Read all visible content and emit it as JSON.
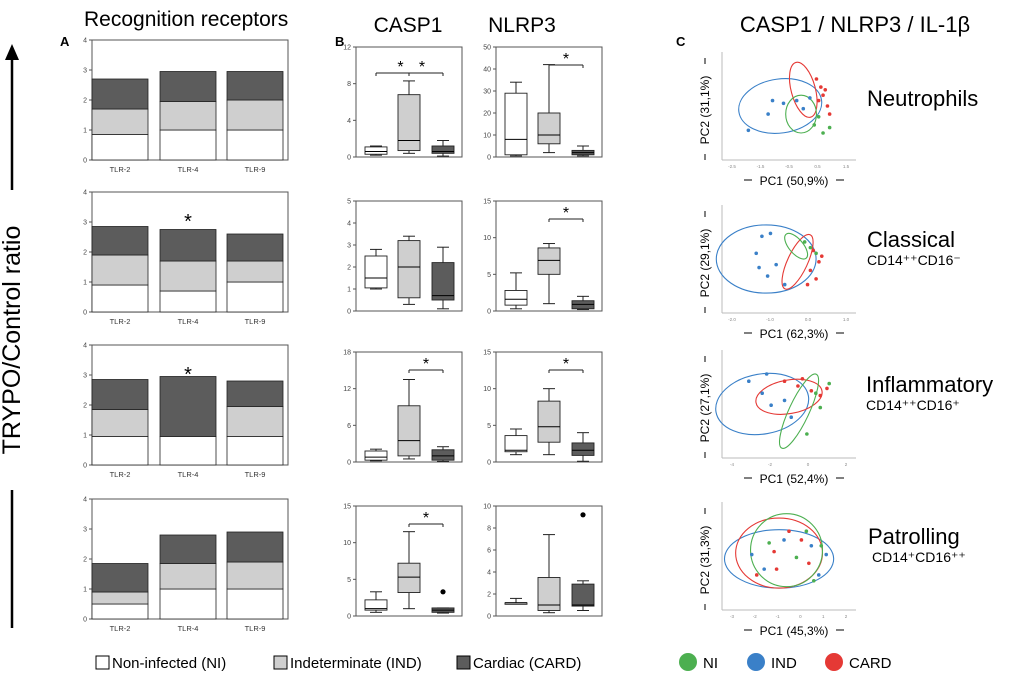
{
  "header": {
    "recognition_title": "Recognition receptors",
    "casp1_title": "CASP1",
    "nlrp3_title": "NLRP3",
    "pca_title": "CASP1 / NLRP3 / IL-1β"
  },
  "panel_labels": {
    "a": "A",
    "b": "B",
    "c": "C"
  },
  "y_axis_label": "TRYPO/Control ratio",
  "legend": {
    "groups": [
      {
        "label": "Non-infected (NI)",
        "color": "#ffffff"
      },
      {
        "label": "Indeterminate (IND)",
        "color": "#cfcfcf"
      },
      {
        "label": "Cardiac (CARD)",
        "color": "#5c5c5c"
      }
    ],
    "dots": [
      {
        "label": "NI",
        "color": "#4caf50"
      },
      {
        "label": "IND",
        "color": "#3a80c8"
      },
      {
        "label": "CARD",
        "color": "#e53935"
      }
    ]
  },
  "chart_data": [
    {
      "type": "bar",
      "panel": "A",
      "title": "Recognition receptors",
      "stacked": true,
      "ylim": [
        0,
        4
      ],
      "yticks": [
        "0",
        "1",
        "2",
        "3",
        "4"
      ],
      "categories": [
        "TLR-2",
        "TLR-4",
        "TLR-9"
      ],
      "rows": [
        {
          "series": [
            {
              "name": "Non-infected (NI)",
              "values": [
                0.85,
                1.0,
                1.0
              ]
            },
            {
              "name": "Indeterminate (IND)",
              "values": [
                0.85,
                0.95,
                1.0
              ]
            },
            {
              "name": "Cardiac (CARD)",
              "values": [
                1.0,
                1.0,
                0.95
              ]
            }
          ],
          "annotation": ""
        },
        {
          "series": [
            {
              "name": "Non-infected (NI)",
              "values": [
                0.9,
                0.7,
                1.0
              ]
            },
            {
              "name": "Indeterminate (IND)",
              "values": [
                1.0,
                1.0,
                0.7
              ]
            },
            {
              "name": "Cardiac (CARD)",
              "values": [
                0.95,
                1.05,
                0.9
              ]
            }
          ],
          "annotation": "*"
        },
        {
          "series": [
            {
              "name": "Non-infected (NI)",
              "values": [
                0.95,
                0.95,
                0.95
              ]
            },
            {
              "name": "Indeterminate (IND)",
              "values": [
                0.9,
                0.0,
                1.0
              ]
            },
            {
              "name": "Cardiac (CARD)",
              "values": [
                1.0,
                2.0,
                0.85
              ]
            }
          ],
          "annotation": "*"
        },
        {
          "series": [
            {
              "name": "Non-infected (NI)",
              "values": [
                0.5,
                1.0,
                1.0
              ]
            },
            {
              "name": "Indeterminate (IND)",
              "values": [
                0.4,
                0.85,
                0.9
              ]
            },
            {
              "name": "Cardiac (CARD)",
              "values": [
                0.95,
                0.95,
                1.0
              ]
            }
          ],
          "annotation": ""
        }
      ]
    },
    {
      "type": "box",
      "panel": "B",
      "groups": [
        "Non-infected (NI)",
        "Indeterminate (IND)",
        "Cardiac (CARD)"
      ],
      "rows": [
        {
          "casp1": {
            "ylim": [
              0,
              12
            ],
            "yticks": [
              "0",
              "4",
              "8",
              "12"
            ],
            "boxes": [
              {
                "min": 0.2,
                "q1": 0.3,
                "median": 0.6,
                "q3": 1.1,
                "max": 1.2
              },
              {
                "min": 0.4,
                "q1": 0.7,
                "median": 1.8,
                "q3": 6.8,
                "max": 8.3
              },
              {
                "min": 0.1,
                "q1": 0.4,
                "median": 0.6,
                "q3": 1.2,
                "max": 1.8
              }
            ],
            "sig": "* *"
          },
          "nlrp3": {
            "ylim": [
              0,
              50
            ],
            "yticks": [
              "0",
              "10",
              "20",
              "30",
              "40",
              "50"
            ],
            "boxes": [
              {
                "min": 0.5,
                "q1": 1,
                "median": 8,
                "q3": 29,
                "max": 34
              },
              {
                "min": 2,
                "q1": 6,
                "median": 10,
                "q3": 20,
                "max": 42
              },
              {
                "min": 0.5,
                "q1": 1,
                "median": 2,
                "q3": 3,
                "max": 5
              }
            ],
            "sig": "*"
          }
        },
        {
          "casp1": {
            "ylim": [
              0,
              5
            ],
            "yticks": [
              "0",
              "1",
              "2",
              "3",
              "4",
              "5"
            ],
            "boxes": [
              {
                "min": 1.0,
                "q1": 1.05,
                "median": 1.5,
                "q3": 2.5,
                "max": 2.8
              },
              {
                "min": 0.3,
                "q1": 0.6,
                "median": 2.0,
                "q3": 3.2,
                "max": 3.4
              },
              {
                "min": 0.1,
                "q1": 0.5,
                "median": 0.7,
                "q3": 2.2,
                "max": 2.9
              }
            ],
            "sig": ""
          },
          "nlrp3": {
            "ylim": [
              0,
              15
            ],
            "yticks": [
              "0",
              "5",
              "10",
              "15"
            ],
            "boxes": [
              {
                "min": 0.3,
                "q1": 0.8,
                "median": 1.6,
                "q3": 2.8,
                "max": 5.2
              },
              {
                "min": 1.0,
                "q1": 5.0,
                "median": 6.9,
                "q3": 8.6,
                "max": 9.2
              },
              {
                "min": 0.2,
                "q1": 0.3,
                "median": 0.9,
                "q3": 1.4,
                "max": 2.0
              }
            ],
            "sig": "*"
          }
        },
        {
          "casp1": {
            "ylim": [
              0,
              18
            ],
            "yticks": [
              "0",
              "6",
              "12",
              "18"
            ],
            "boxes": [
              {
                "min": 0.2,
                "q1": 0.3,
                "median": 0.8,
                "q3": 1.8,
                "max": 2.1
              },
              {
                "min": 0.5,
                "q1": 1.0,
                "median": 3.5,
                "q3": 9.2,
                "max": 13.5
              },
              {
                "min": 0.1,
                "q1": 0.3,
                "median": 1.0,
                "q3": 2.0,
                "max": 2.5
              }
            ],
            "sig": "*"
          },
          "nlrp3": {
            "ylim": [
              0,
              15
            ],
            "yticks": [
              "0",
              "5",
              "10",
              "15"
            ],
            "boxes": [
              {
                "min": 1.0,
                "q1": 1.4,
                "median": 1.6,
                "q3": 3.6,
                "max": 4.5
              },
              {
                "min": 1.0,
                "q1": 2.7,
                "median": 4.8,
                "q3": 8.3,
                "max": 10.0
              },
              {
                "min": 0.1,
                "q1": 0.9,
                "median": 1.6,
                "q3": 2.6,
                "max": 4.0
              }
            ],
            "sig": "*"
          }
        },
        {
          "casp1": {
            "ylim": [
              0,
              15
            ],
            "yticks": [
              "0",
              "5",
              "10",
              "15"
            ],
            "boxes": [
              {
                "min": 0.5,
                "q1": 0.8,
                "median": 1.0,
                "q3": 2.2,
                "max": 3.3
              },
              {
                "min": 1.0,
                "q1": 3.2,
                "median": 5.3,
                "q3": 7.2,
                "max": 11.5
              },
              {
                "min": 0.4,
                "q1": 0.5,
                "median": 0.8,
                "q3": 1.1,
                "max": 1.1
              }
            ],
            "outliers": [
              {
                "group": 2,
                "value": 3.3
              }
            ],
            "sig": "*"
          },
          "nlrp3": {
            "ylim": [
              0,
              10
            ],
            "yticks": [
              "0",
              "2",
              "4",
              "6",
              "8",
              "10"
            ],
            "boxes": [
              {
                "min": 1.1,
                "q1": 1.2,
                "median": 1.2,
                "q3": 1.2,
                "max": 1.6
              },
              {
                "min": 0.3,
                "q1": 0.5,
                "median": 1.0,
                "q3": 3.5,
                "max": 7.4
              },
              {
                "min": 0.5,
                "q1": 0.9,
                "median": 1.0,
                "q3": 2.9,
                "max": 3.2
              }
            ],
            "outliers": [
              {
                "group": 2,
                "value": 9.2
              }
            ],
            "sig": ""
          }
        }
      ]
    },
    {
      "type": "scatter",
      "panel": "C",
      "title": "CASP1 / NLRP3 / IL-1β",
      "rows": [
        {
          "cell_type": "Neutrophils",
          "subtitle": "",
          "xlabel": "PC1 (50,9%)",
          "ylabel": "PC2 (31,1%)",
          "xticks": [
            "-2.5",
            "-1.5",
            "-0.5",
            "0.5",
            "1.5"
          ],
          "points": [
            {
              "g": "IND",
              "x": -2.7,
              "y": -0.6
            },
            {
              "g": "IND",
              "x": -1.6,
              "y": 0.5
            },
            {
              "g": "IND",
              "x": -1.1,
              "y": 0.4
            },
            {
              "g": "IND",
              "x": -0.5,
              "y": 0.5
            },
            {
              "g": "IND",
              "x": -0.2,
              "y": 0.2
            },
            {
              "g": "IND",
              "x": -1.8,
              "y": 0.0
            },
            {
              "g": "IND",
              "x": 0.1,
              "y": 0.6
            },
            {
              "g": "CARD",
              "x": 0.4,
              "y": 1.3
            },
            {
              "g": "CARD",
              "x": 0.6,
              "y": 1.0
            },
            {
              "g": "CARD",
              "x": 0.7,
              "y": 0.7
            },
            {
              "g": "CARD",
              "x": 0.9,
              "y": 0.3
            },
            {
              "g": "CARD",
              "x": 1.0,
              "y": 0.0
            },
            {
              "g": "CARD",
              "x": 0.5,
              "y": 0.5
            },
            {
              "g": "CARD",
              "x": 0.8,
              "y": 0.9
            },
            {
              "g": "NI",
              "x": 0.3,
              "y": -0.4
            },
            {
              "g": "NI",
              "x": 0.7,
              "y": -0.7
            },
            {
              "g": "NI",
              "x": 0.5,
              "y": -0.1
            },
            {
              "g": "NI",
              "x": 1.0,
              "y": -0.5
            }
          ]
        },
        {
          "cell_type": "Classical",
          "subtitle": "CD14⁺⁺CD16⁻",
          "xlabel": "PC1 (62,3%)",
          "ylabel": "PC2 (29,1%)",
          "xticks": [
            "-2.0",
            "-1.0",
            "0.0",
            "1.0"
          ],
          "points": [
            {
              "g": "IND",
              "x": -1.5,
              "y": 0.9
            },
            {
              "g": "IND",
              "x": -1.2,
              "y": 1.0
            },
            {
              "g": "IND",
              "x": -1.7,
              "y": 0.3
            },
            {
              "g": "IND",
              "x": -1.0,
              "y": -0.1
            },
            {
              "g": "IND",
              "x": -1.3,
              "y": -0.5
            },
            {
              "g": "IND",
              "x": -0.7,
              "y": -0.8
            },
            {
              "g": "IND",
              "x": -1.6,
              "y": -0.2
            },
            {
              "g": "NI",
              "x": 0.0,
              "y": 0.7
            },
            {
              "g": "NI",
              "x": 0.2,
              "y": 0.5
            },
            {
              "g": "NI",
              "x": 0.4,
              "y": 0.3
            },
            {
              "g": "CARD",
              "x": 0.3,
              "y": 0.4
            },
            {
              "g": "CARD",
              "x": 0.5,
              "y": 0.0
            },
            {
              "g": "CARD",
              "x": 0.2,
              "y": -0.3
            },
            {
              "g": "CARD",
              "x": 0.4,
              "y": -0.6
            },
            {
              "g": "CARD",
              "x": 0.6,
              "y": 0.2
            },
            {
              "g": "CARD",
              "x": 0.1,
              "y": -0.8
            }
          ]
        },
        {
          "cell_type": "Inflammatory",
          "subtitle": "CD14⁺⁺CD16⁺",
          "xlabel": "PC1 (52,4%)",
          "ylabel": "PC2 (27,1%)",
          "xticks": [
            "-4",
            "-2",
            "0",
            "2"
          ],
          "points": [
            {
              "g": "IND",
              "x": -2.6,
              "y": 0.6
            },
            {
              "g": "IND",
              "x": -2.0,
              "y": 0.1
            },
            {
              "g": "IND",
              "x": -1.6,
              "y": -0.4
            },
            {
              "g": "IND",
              "x": -1.0,
              "y": -0.2
            },
            {
              "g": "IND",
              "x": -1.8,
              "y": 0.9
            },
            {
              "g": "IND",
              "x": -0.7,
              "y": -0.9
            },
            {
              "g": "CARD",
              "x": -1.0,
              "y": 0.6
            },
            {
              "g": "CARD",
              "x": -0.4,
              "y": 0.4
            },
            {
              "g": "CARD",
              "x": 0.2,
              "y": 0.2
            },
            {
              "g": "CARD",
              "x": 0.6,
              "y": 0.0
            },
            {
              "g": "CARD",
              "x": 0.9,
              "y": 0.3
            },
            {
              "g": "CARD",
              "x": -0.2,
              "y": 0.7
            },
            {
              "g": "NI",
              "x": 0.4,
              "y": 0.1
            },
            {
              "g": "NI",
              "x": 1.0,
              "y": 0.5
            },
            {
              "g": "NI",
              "x": 0.6,
              "y": -0.5
            },
            {
              "g": "NI",
              "x": 0.0,
              "y": -1.6
            }
          ]
        },
        {
          "cell_type": "Patrolling",
          "subtitle": "CD14⁺CD16⁺⁺",
          "xlabel": "PC1 (45,3%)",
          "ylabel": "PC2 (31,3%)",
          "xticks": [
            "-3",
            "-2",
            "-1",
            "0",
            "1",
            "2"
          ],
          "points": [
            {
              "g": "IND",
              "x": -1.9,
              "y": 0.1
            },
            {
              "g": "IND",
              "x": -1.4,
              "y": -0.4
            },
            {
              "g": "IND",
              "x": -0.6,
              "y": 0.6
            },
            {
              "g": "IND",
              "x": 0.5,
              "y": 0.4
            },
            {
              "g": "IND",
              "x": 0.8,
              "y": -0.6
            },
            {
              "g": "IND",
              "x": 1.1,
              "y": 0.1
            },
            {
              "g": "CARD",
              "x": -1.7,
              "y": -0.6
            },
            {
              "g": "CARD",
              "x": -1.0,
              "y": 0.2
            },
            {
              "g": "CARD",
              "x": -0.4,
              "y": 0.9
            },
            {
              "g": "CARD",
              "x": 0.1,
              "y": 0.6
            },
            {
              "g": "CARD",
              "x": 0.4,
              "y": -0.2
            },
            {
              "g": "CARD",
              "x": -0.9,
              "y": -0.4
            },
            {
              "g": "NI",
              "x": -1.2,
              "y": 0.5
            },
            {
              "g": "NI",
              "x": -0.1,
              "y": 0.0
            },
            {
              "g": "NI",
              "x": 0.3,
              "y": 0.9
            },
            {
              "g": "NI",
              "x": 0.9,
              "y": 0.4
            },
            {
              "g": "NI",
              "x": 0.6,
              "y": -0.8
            }
          ]
        }
      ]
    }
  ]
}
